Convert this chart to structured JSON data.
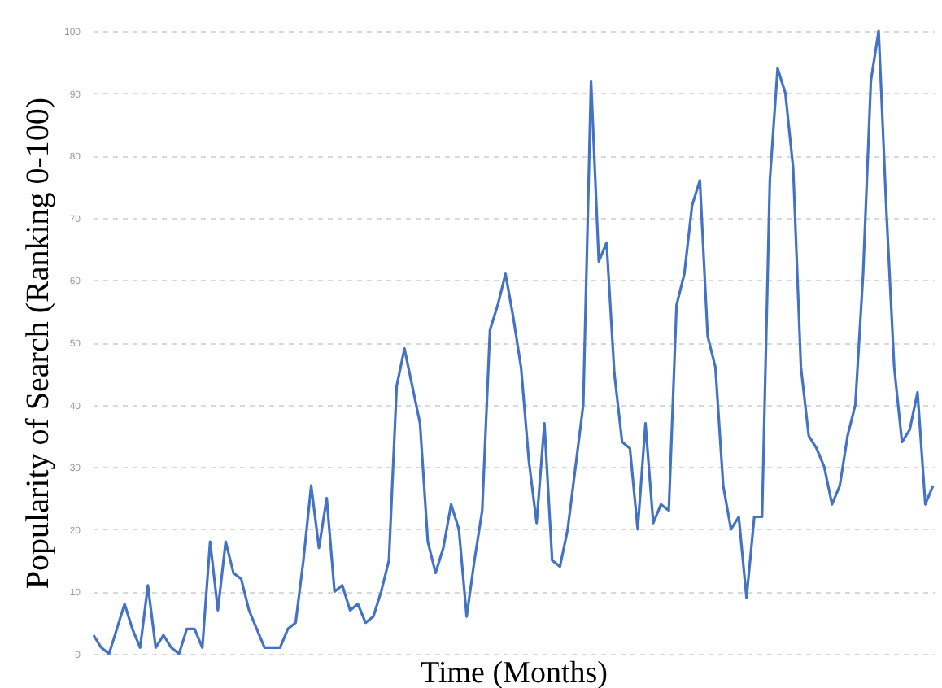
{
  "chart_data": {
    "type": "line",
    "xlabel": "Time (Months)",
    "ylabel": "Popularity of Search (Ranking 0-100)",
    "categories": [
      null,
      null,
      null,
      null,
      null,
      null,
      null,
      null,
      null,
      null,
      null,
      null,
      null,
      null,
      null,
      null,
      null,
      null,
      null,
      null,
      null,
      null,
      null,
      null,
      null,
      null,
      null,
      null,
      null,
      null,
      null,
      null,
      null,
      null,
      null,
      null,
      null,
      null,
      null,
      null,
      null,
      null,
      null,
      null,
      null,
      null,
      null,
      null,
      null,
      null,
      null,
      null,
      null,
      null,
      null,
      null,
      null,
      null,
      null,
      null,
      null,
      null,
      null,
      null,
      null,
      null,
      null,
      null,
      null,
      null,
      null,
      null,
      null,
      null,
      null,
      null,
      null,
      null,
      null,
      null,
      null,
      null,
      null,
      null,
      null,
      null,
      null,
      null,
      null,
      null,
      null,
      null,
      null,
      null,
      null,
      null,
      null,
      null,
      null,
      null,
      null,
      null,
      null,
      null,
      null,
      null,
      null,
      null,
      null
    ],
    "series": [
      {
        "color": "#4472c4",
        "values": [
          3,
          1,
          0,
          4,
          8,
          4,
          1,
          11,
          1,
          3,
          1,
          0,
          4,
          4,
          1,
          18,
          7,
          18,
          13,
          12,
          7,
          4,
          1,
          1,
          1,
          4,
          5,
          15,
          27,
          17,
          25,
          10,
          11,
          7,
          8,
          5,
          6,
          10,
          15,
          43,
          49,
          43,
          37,
          18,
          13,
          17,
          24,
          20,
          6,
          15,
          23,
          52,
          56,
          61,
          54,
          46,
          31,
          21,
          37,
          15,
          14,
          20,
          30,
          40,
          92,
          63,
          66,
          45,
          34,
          33,
          20,
          37,
          21,
          24,
          23,
          56,
          61,
          72,
          76,
          51,
          46,
          27,
          20,
          22,
          9,
          22,
          22,
          76,
          94,
          90,
          78,
          46,
          35,
          33,
          30,
          24,
          27,
          35,
          40,
          61,
          92,
          100,
          71,
          46,
          34,
          36,
          42,
          24,
          27
        ]
      }
    ],
    "ylim": [
      0,
      100
    ],
    "yticks": [
      0,
      10,
      20,
      30,
      40,
      50,
      60,
      70,
      80,
      90,
      100
    ],
    "grid": "y",
    "tick_labels": "y",
    "marker": "none",
    "line_style": "solid"
  }
}
